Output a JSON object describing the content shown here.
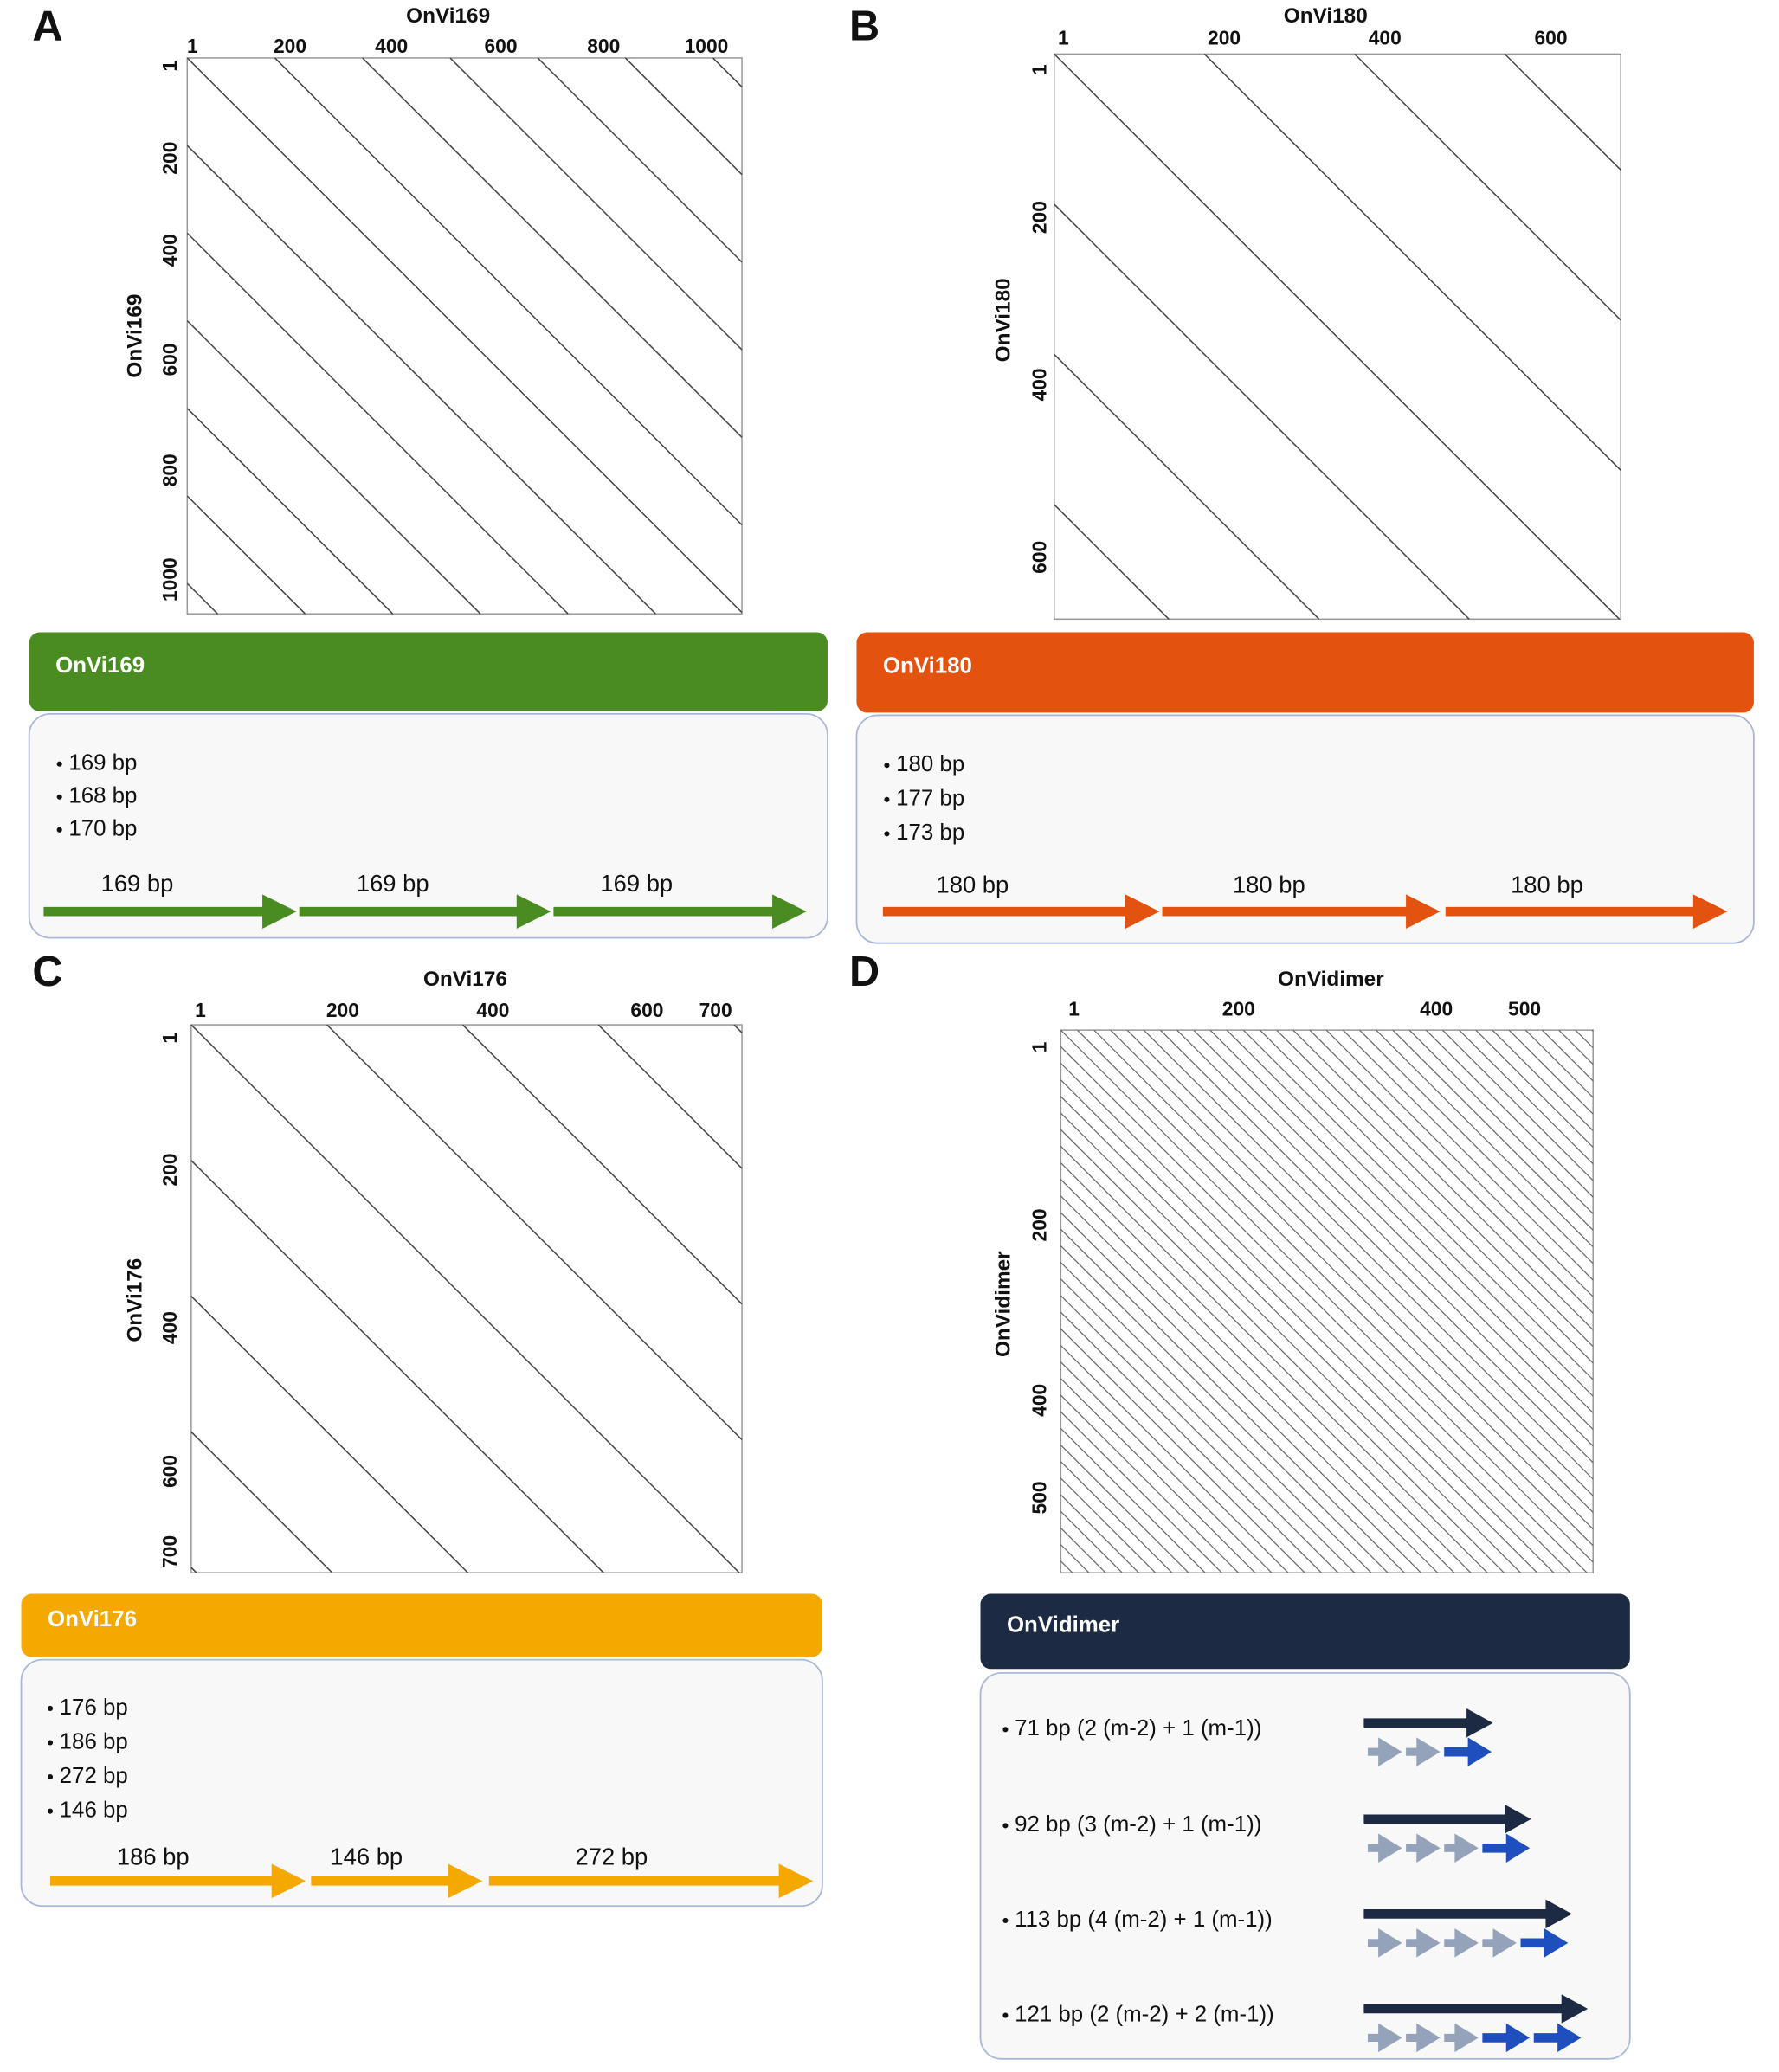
{
  "panels": [
    {
      "letter": "A",
      "plot": {
        "x_title": "OnVi169",
        "y_title": "OnVi169",
        "x_ticks": [
          1,
          200,
          400,
          600,
          800,
          1000
        ],
        "y_ticks": [
          1,
          200,
          400,
          600,
          800,
          1000
        ]
      },
      "header": "OnVi169",
      "bullets": [
        "169 bp",
        "168 bp",
        "170 bp"
      ],
      "arrows": [
        "169 bp",
        "169 bp",
        "169 bp"
      ]
    },
    {
      "letter": "B",
      "plot": {
        "x_title": "OnVi180",
        "y_title": "OnVi180",
        "x_ticks": [
          1,
          200,
          400,
          600
        ],
        "y_ticks": [
          1,
          200,
          400,
          600
        ]
      },
      "header": "OnVi180",
      "bullets": [
        "180 bp",
        "177 bp",
        "173 bp"
      ],
      "arrows": [
        "180 bp",
        "180 bp",
        "180 bp"
      ]
    },
    {
      "letter": "C",
      "plot": {
        "x_title": "OnVi176",
        "y_title": "OnVi176",
        "x_ticks": [
          1,
          200,
          400,
          600,
          700
        ],
        "y_ticks": [
          1,
          200,
          400,
          600,
          700
        ]
      },
      "header": "OnVi176",
      "bullets": [
        "176 bp",
        "186 bp",
        "272 bp",
        "146 bp"
      ],
      "arrows": [
        "186 bp",
        "146 bp",
        "272 bp"
      ]
    },
    {
      "letter": "D",
      "plot": {
        "x_title": "OnVidimer",
        "y_title": "OnVidimer",
        "x_ticks": [
          1,
          200,
          400,
          500
        ],
        "y_ticks": [
          1,
          200,
          400,
          500
        ]
      },
      "header": "OnVidimer",
      "bullets": [
        "71 bp (2 (m-2) + 1 (m-1))",
        "92 bp (3 (m-2) + 1 (m-1))",
        "113 bp (4 (m-2) + 1 (m-1))",
        "121 bp (2 (m-2) + 2 (m-1))"
      ]
    }
  ]
}
